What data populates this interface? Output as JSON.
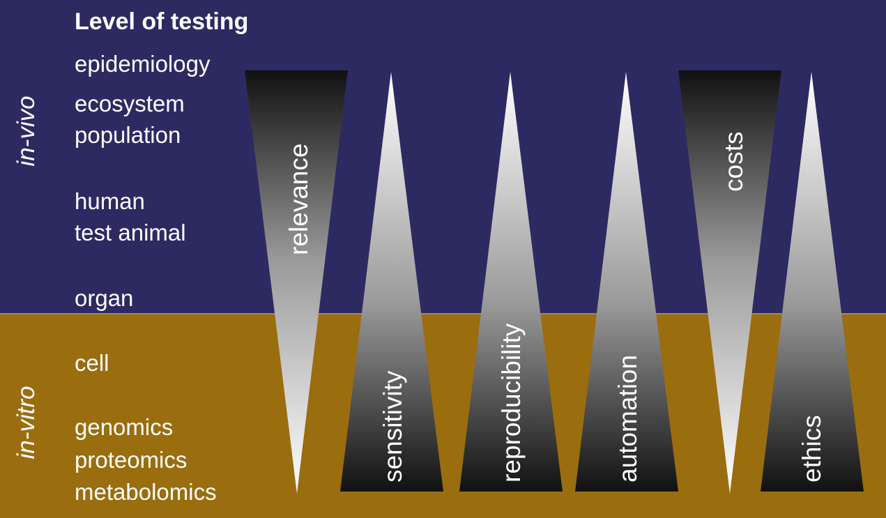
{
  "heading": "Level of testing",
  "side_labels": {
    "in_vivo": "in-vivo",
    "in_vitro": "in-vitro"
  },
  "levels": [
    "epidemiology",
    "ecosystem",
    "population",
    "human",
    "test animal",
    "organ",
    "cell",
    "genomics",
    "proteomics",
    "metabolomics"
  ],
  "criteria": [
    {
      "name": "relevance",
      "direction": "decreasing"
    },
    {
      "name": "sensitivity",
      "direction": "increasing"
    },
    {
      "name": "reproducibility",
      "direction": "increasing"
    },
    {
      "name": "automation",
      "direction": "increasing"
    },
    {
      "name": "costs",
      "direction": "decreasing"
    },
    {
      "name": "ethics",
      "direction": "increasing"
    }
  ],
  "colors": {
    "in_vivo_band": "#2d2a62",
    "in_vitro_band": "#9a6d0e",
    "text": "#ffffff",
    "wedge_dark": "#111111",
    "wedge_light": "#ffffff"
  }
}
